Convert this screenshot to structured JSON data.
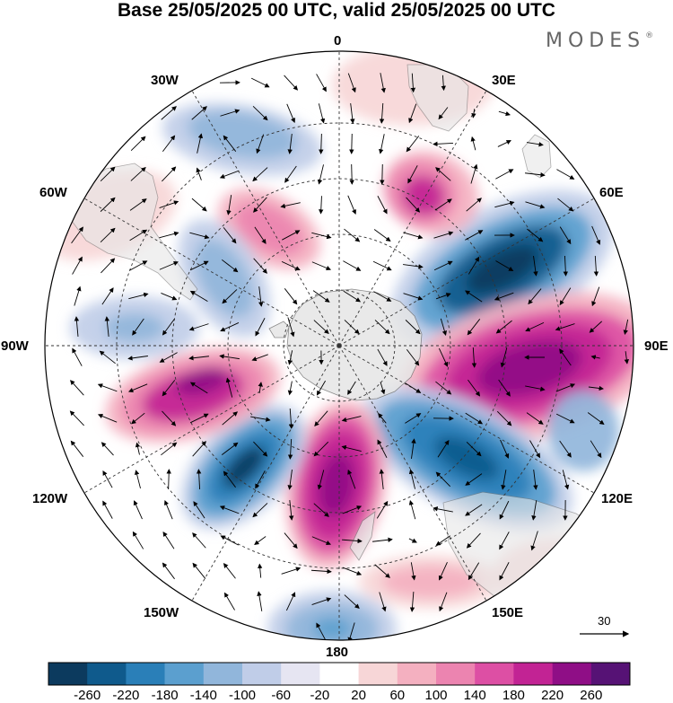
{
  "title": "Base 25/05/2025 00 UTC, valid 25/05/2025 00 UTC",
  "brand": "MODES",
  "brand_mark": "®",
  "longitude_labels": {
    "top": "0",
    "top_right": "30E",
    "upper_right": "60E",
    "right": "90E",
    "lower_right": "120E",
    "bottom_right": "150E",
    "bottom": "180",
    "bottom_left": "150W",
    "lower_left": "120W",
    "left": "90W",
    "upper_left": "60W",
    "top_left": "30W"
  },
  "vector_scale_label": "30",
  "colorbar": {
    "ticks": [
      "-260",
      "-220",
      "-180",
      "-140",
      "-100",
      "-60",
      "-20",
      "20",
      "60",
      "100",
      "140",
      "180",
      "220",
      "260"
    ],
    "colors": [
      "#0c3a5e",
      "#0f5a8c",
      "#2a7fb8",
      "#5b9fcf",
      "#91b6db",
      "#c0cde8",
      "#e6e5f2",
      "#ffffff",
      "#f7d6d7",
      "#f4b0c0",
      "#ec84b0",
      "#dd4fa4",
      "#c22394",
      "#8f0e86",
      "#561275"
    ]
  },
  "colors": {
    "land": "#e6e6e6",
    "coast": "#777777",
    "grid": "#333333"
  }
}
